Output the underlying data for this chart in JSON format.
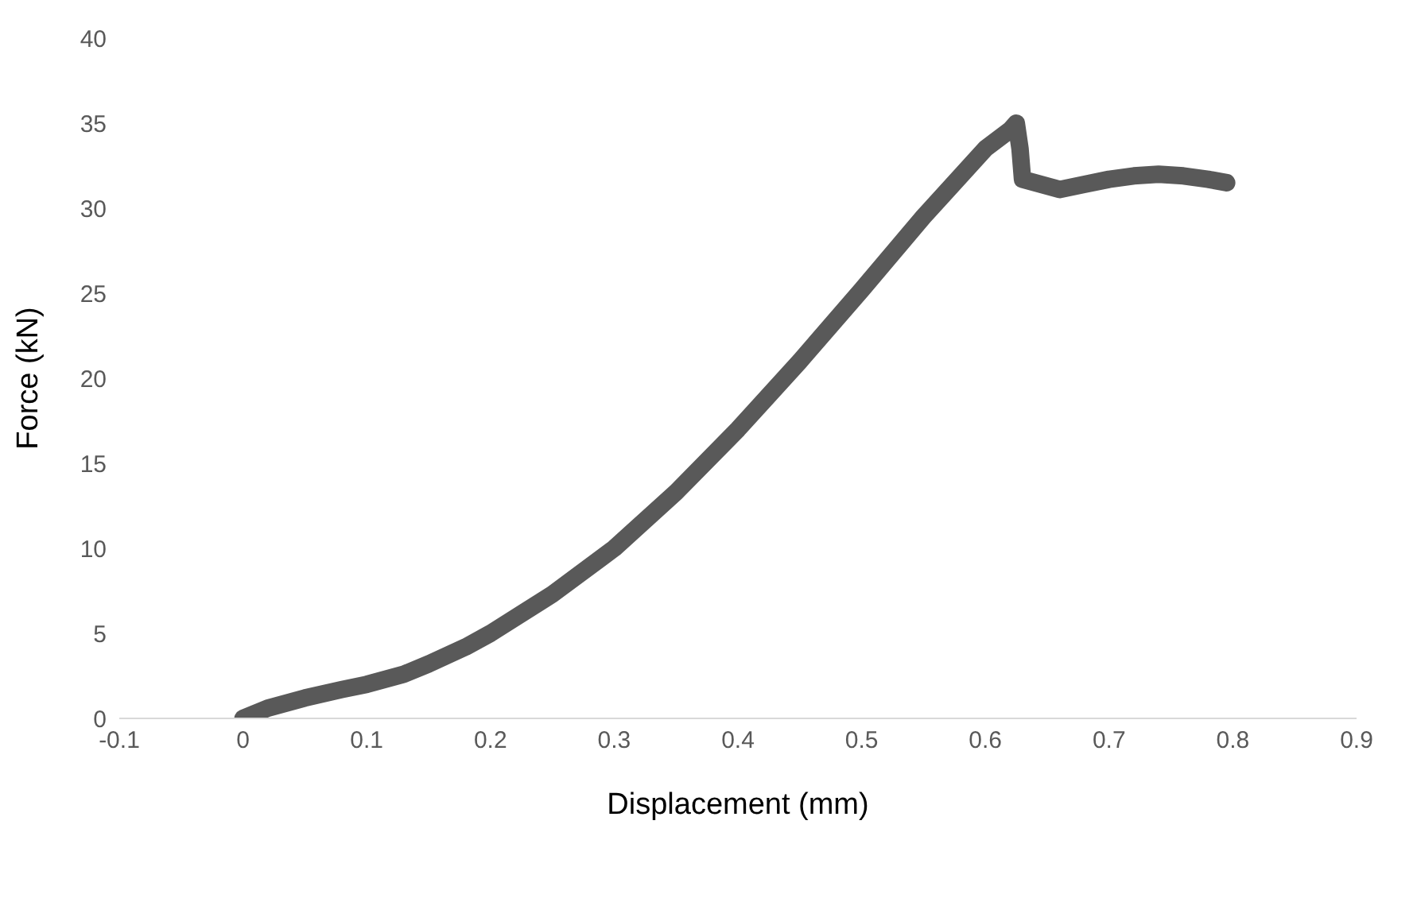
{
  "chart_data": {
    "type": "line",
    "xlabel": "Displacement (mm)",
    "ylabel": "Force (kN)",
    "x": [
      0,
      0.02,
      0.05,
      0.08,
      0.1,
      0.13,
      0.15,
      0.18,
      0.2,
      0.25,
      0.3,
      0.35,
      0.4,
      0.45,
      0.5,
      0.55,
      0.6,
      0.62,
      0.625,
      0.628,
      0.63,
      0.64,
      0.66,
      0.68,
      0.7,
      0.72,
      0.74,
      0.76,
      0.78,
      0.795
    ],
    "series": [
      {
        "color": "#595959",
        "values": [
          0,
          0.6,
          1.2,
          1.7,
          2,
          2.6,
          3.2,
          4.2,
          5,
          7.3,
          10,
          13.3,
          17,
          21,
          25.2,
          29.5,
          33.5,
          34.6,
          35,
          33.5,
          31.7,
          31.5,
          31.1,
          31.4,
          31.7,
          31.9,
          32,
          31.9,
          31.7,
          31.5
        ]
      }
    ],
    "xlim": [
      -0.1,
      0.9
    ],
    "xticks": [
      -0.1,
      0,
      0.1,
      0.2,
      0.3,
      0.4,
      0.5,
      0.6,
      0.7,
      0.8,
      0.9
    ],
    "ylim": [
      0,
      40
    ],
    "yticks": [
      0,
      5,
      10,
      15,
      20,
      25,
      30,
      35,
      40
    ],
    "grid": false,
    "legend": false,
    "marker": "none",
    "line_style": "solid"
  }
}
